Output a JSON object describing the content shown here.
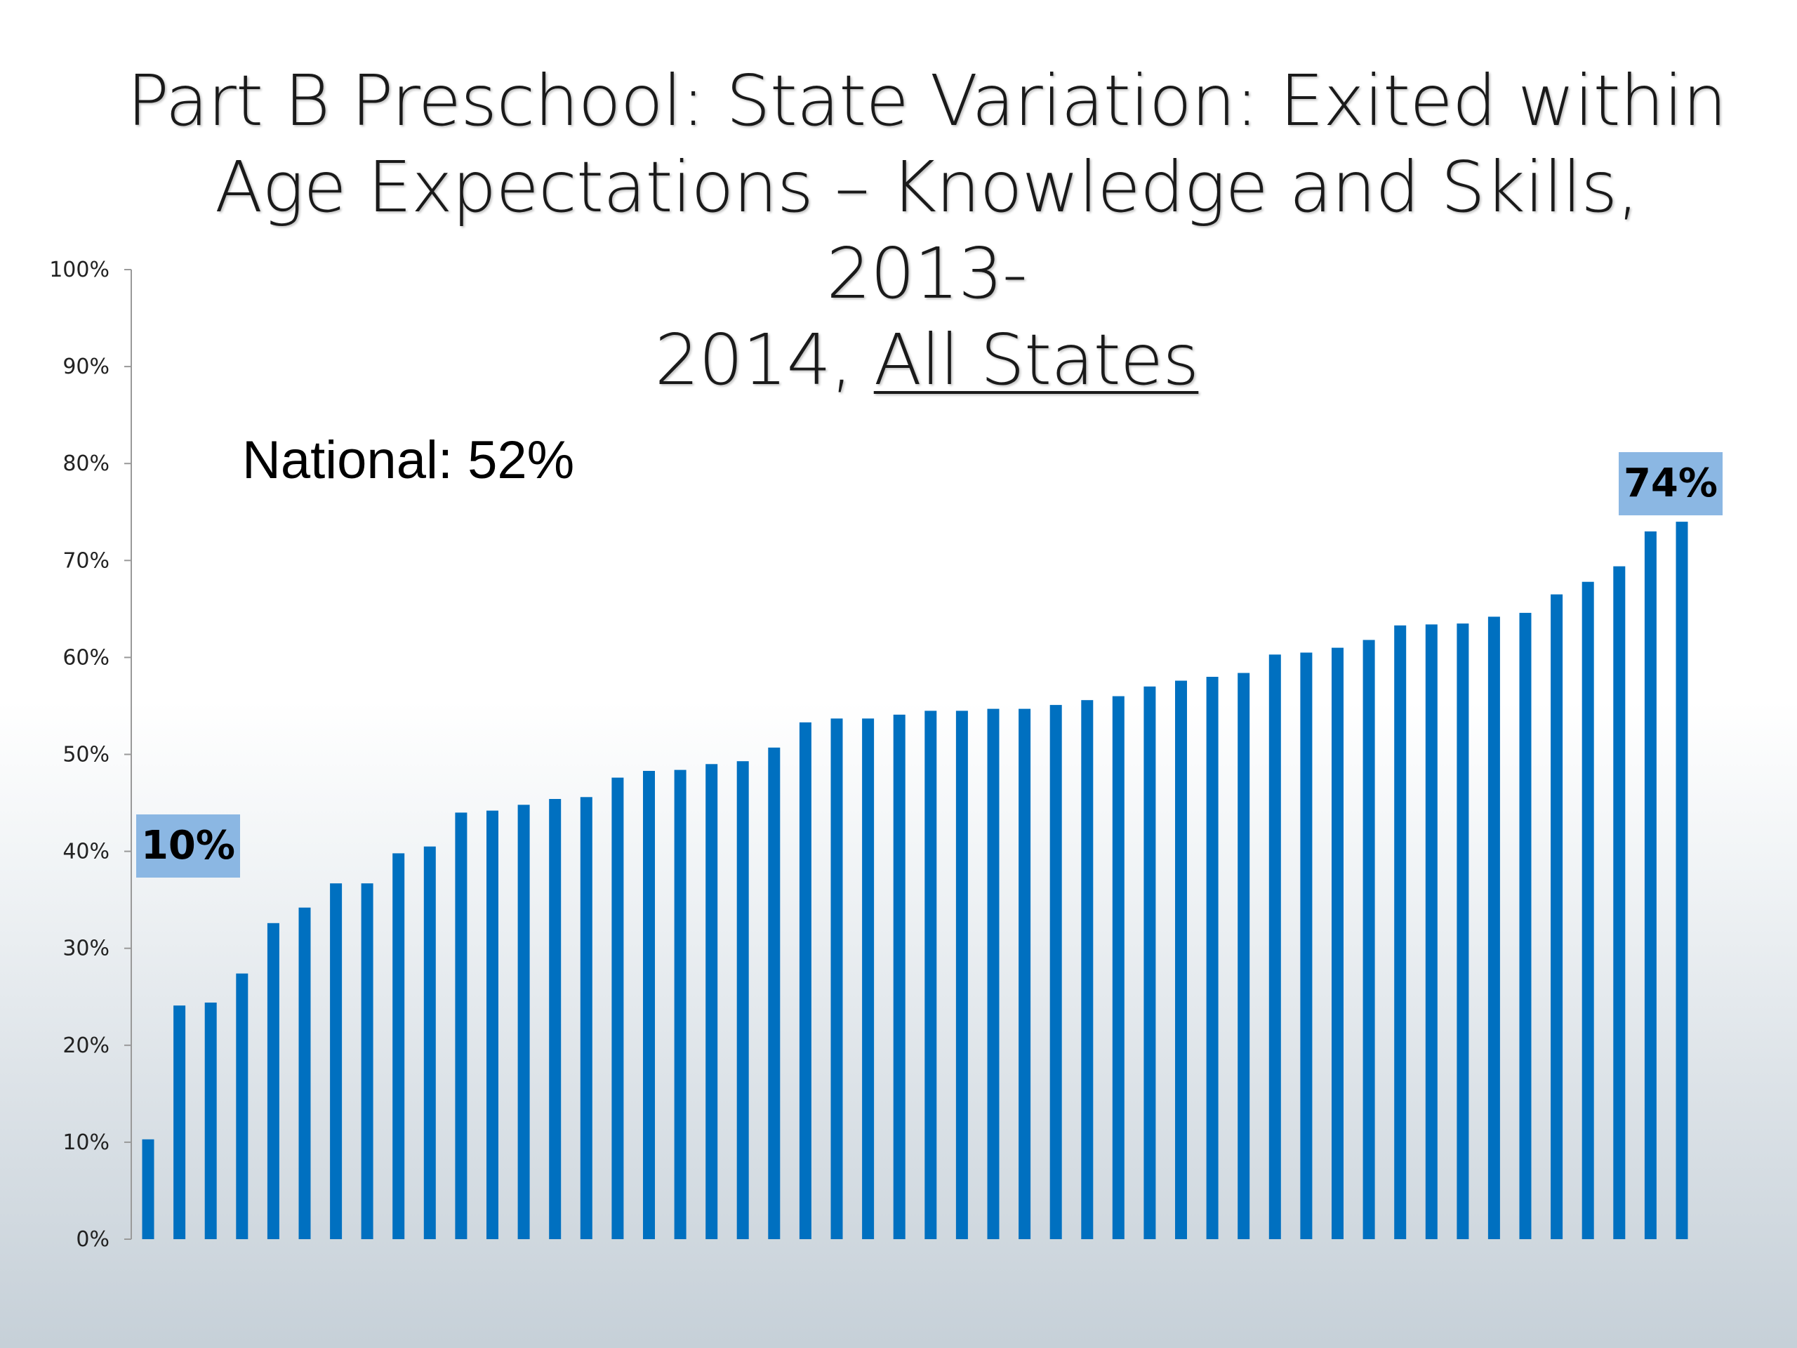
{
  "title": {
    "line1": "Part B Preschool: State Variation: Exited within",
    "line2": "Age Expectations – Knowledge and Skills, 2013-",
    "line3_prefix": "2014, ",
    "line3_underlined": "All States"
  },
  "annotations": {
    "national": "National: 52%",
    "min_callout": "10%",
    "max_callout": "74%"
  },
  "colors": {
    "bar": "#0070c0",
    "axis": "#999999",
    "callout": "#8bb7e3"
  },
  "chart_data": {
    "type": "bar",
    "title": "Part B Preschool: State Variation: Exited within Age Expectations – Knowledge and Skills, 2013-2014, All States",
    "xlabel": "",
    "ylabel": "",
    "ylim": [
      0,
      100
    ],
    "y_ticks": [
      "0%",
      "10%",
      "20%",
      "30%",
      "40%",
      "50%",
      "60%",
      "70%",
      "80%",
      "90%",
      "100%"
    ],
    "grid": false,
    "values": [
      10.3,
      24.1,
      24.4,
      27.4,
      32.6,
      34.2,
      36.7,
      36.7,
      39.8,
      40.5,
      44.0,
      44.2,
      44.8,
      45.4,
      45.6,
      47.6,
      48.3,
      48.4,
      49.0,
      49.3,
      50.7,
      53.3,
      53.7,
      53.7,
      54.1,
      54.5,
      54.5,
      54.7,
      54.7,
      55.1,
      55.6,
      56.0,
      57.0,
      57.6,
      58.0,
      58.4,
      60.3,
      60.5,
      61.0,
      61.8,
      63.3,
      63.4,
      63.5,
      64.2,
      64.6,
      66.5,
      67.8,
      69.4,
      73.0,
      74.0
    ]
  }
}
